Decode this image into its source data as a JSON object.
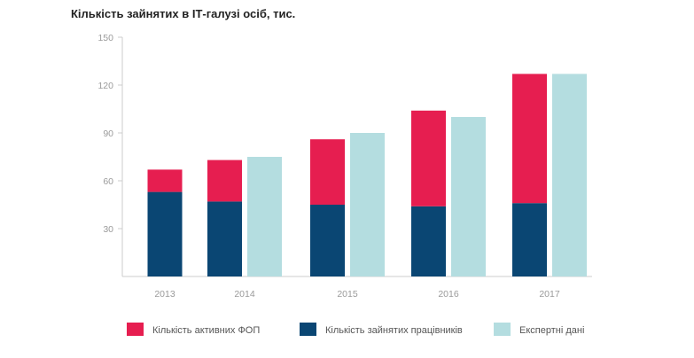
{
  "chart_data": {
    "type": "bar",
    "stacked": true,
    "title": "Кількість зайнятих в ІТ-галузі осіб, тис.",
    "xlabel": "",
    "ylabel": "",
    "ylim": [
      0,
      150
    ],
    "yticks": [
      30,
      60,
      90,
      120,
      150
    ],
    "categories": [
      "2013",
      "2014",
      "2015",
      "2016",
      "2017"
    ],
    "series": [
      {
        "name": "Кількість зайнятих працівників",
        "color": "#0a4673",
        "stack": "actual",
        "values": [
          53,
          47,
          45,
          44,
          46
        ]
      },
      {
        "name": "Кількість активних ФОП",
        "color": "#e61e50",
        "stack": "actual",
        "values": [
          14,
          26,
          41,
          60,
          81
        ]
      },
      {
        "name": "Експертні дані",
        "color": "#b4dde0",
        "stack": "expert",
        "values": [
          null,
          75,
          90,
          100,
          127
        ]
      }
    ],
    "legend": {
      "position": "bottom",
      "order": [
        "Кількість активних ФОП",
        "Кількість зайнятих працівників",
        "Експертні дані"
      ]
    },
    "grid": false
  }
}
